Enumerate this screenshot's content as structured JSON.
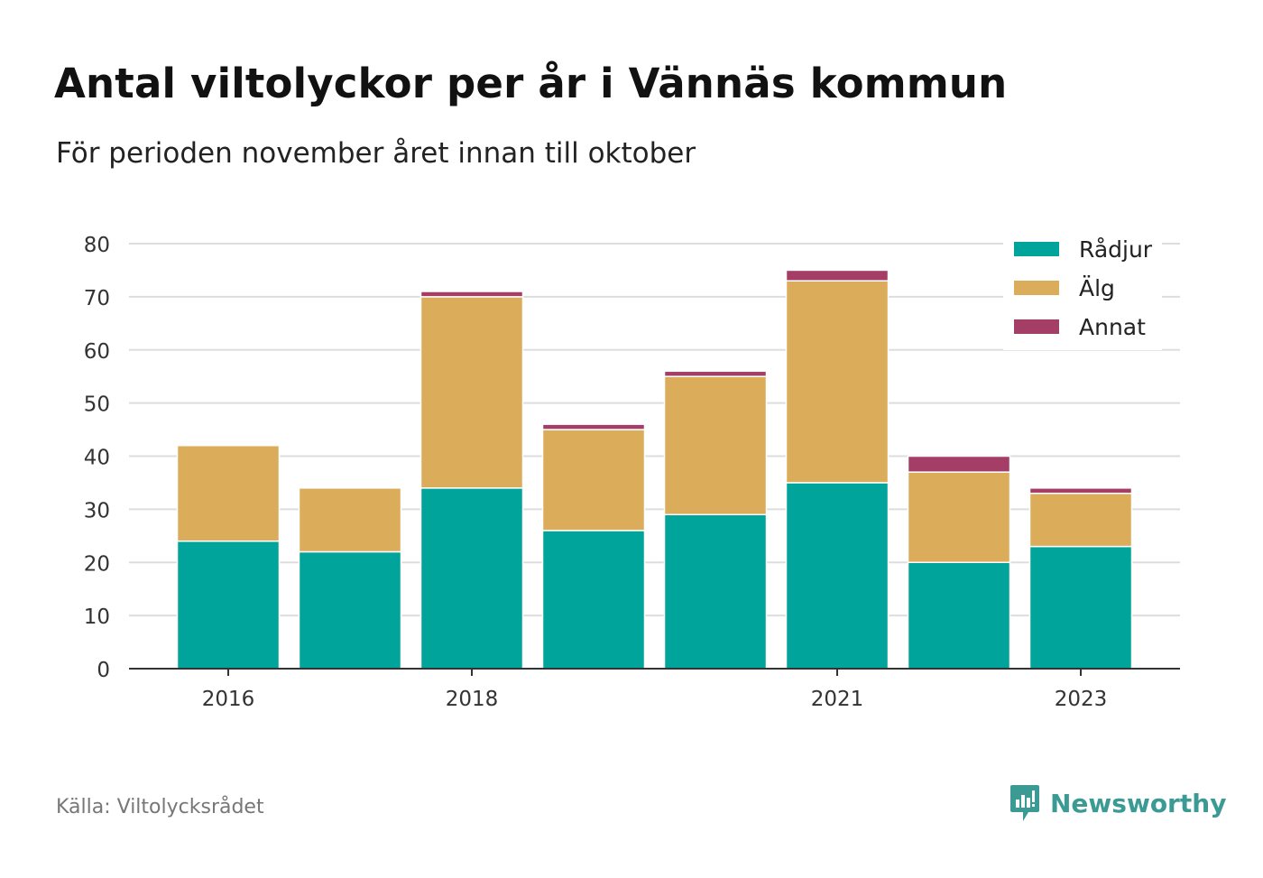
{
  "title": "Antal viltolyckor per år i Vännäs kommun",
  "subtitle": "För perioden november året innan till oktober",
  "source": "Källa: Viltolycksrådet",
  "brand": {
    "name": "Newsworthy",
    "icon": "newsworthy-logo-icon"
  },
  "colors": {
    "radjur": "#00a49a",
    "alg": "#dbac59",
    "annat": "#a43e66",
    "grid": "#dddddd",
    "axis": "#333333"
  },
  "chart_data": {
    "type": "bar",
    "stacked": true,
    "categories": [
      "2016",
      "2017",
      "2018",
      "2019",
      "2020",
      "2021",
      "2022",
      "2023"
    ],
    "x_tick_labels": [
      "2016",
      "2018",
      "2021",
      "2023"
    ],
    "series": [
      {
        "name": "Rådjur",
        "color": "#00a49a",
        "values": [
          24,
          22,
          34,
          26,
          29,
          35,
          20,
          23
        ]
      },
      {
        "name": "Älg",
        "color": "#dbac59",
        "values": [
          18,
          12,
          36,
          19,
          26,
          38,
          17,
          10
        ]
      },
      {
        "name": "Annat",
        "color": "#a43e66",
        "values": [
          0,
          0,
          1,
          1,
          1,
          2,
          3,
          1
        ]
      }
    ],
    "ylim": [
      0,
      80
    ],
    "yticks": [
      0,
      10,
      20,
      30,
      40,
      50,
      60,
      70,
      80
    ],
    "xlabel": "",
    "ylabel": "",
    "grid": true,
    "legend": "top-right"
  }
}
